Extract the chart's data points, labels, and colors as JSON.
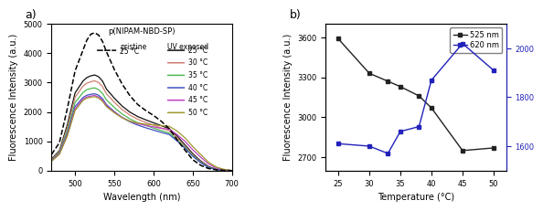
{
  "panel_a": {
    "title": "p(NIPAM-NBD-SP)",
    "xlabel": "Wavelength (nm)",
    "ylabel": "Fluorescence Intensity (a.u.)",
    "xlim": [
      470,
      700
    ],
    "ylim": [
      0,
      5000
    ],
    "yticks": [
      0,
      1000,
      2000,
      3000,
      4000,
      5000
    ],
    "xticks": [
      500,
      550,
      600,
      650,
      700
    ],
    "pristine_color": "#000000",
    "pristine_label": "25 °C",
    "uv_colors": [
      "#111111",
      "#d08070",
      "#50b850",
      "#4050c0",
      "#c040c0",
      "#a09830"
    ],
    "uv_labels": [
      "25 °C",
      "30 °C",
      "35 °C",
      "40 °C",
      "45 °C",
      "50 °C"
    ],
    "wavelengths": [
      470,
      480,
      490,
      500,
      510,
      515,
      520,
      525,
      530,
      535,
      540,
      550,
      560,
      570,
      580,
      590,
      600,
      610,
      620,
      630,
      640,
      650,
      660,
      670,
      680,
      690,
      700
    ],
    "pristine_25": [
      550,
      950,
      2100,
      3400,
      4100,
      4450,
      4650,
      4700,
      4620,
      4400,
      4050,
      3450,
      2950,
      2550,
      2250,
      2050,
      1880,
      1680,
      1430,
      1050,
      700,
      370,
      180,
      70,
      25,
      8,
      0
    ],
    "uv_25": [
      400,
      680,
      1550,
      2650,
      3050,
      3170,
      3230,
      3260,
      3200,
      3050,
      2780,
      2470,
      2200,
      1990,
      1840,
      1730,
      1630,
      1530,
      1430,
      1180,
      880,
      580,
      330,
      140,
      45,
      12,
      0
    ],
    "uv_30": [
      380,
      650,
      1450,
      2500,
      2880,
      2980,
      3030,
      3060,
      3000,
      2860,
      2620,
      2330,
      2080,
      1890,
      1750,
      1640,
      1550,
      1450,
      1360,
      1120,
      830,
      540,
      300,
      120,
      38,
      10,
      0
    ],
    "uv_35": [
      360,
      620,
      1350,
      2320,
      2660,
      2760,
      2800,
      2820,
      2760,
      2630,
      2410,
      2150,
      1930,
      1760,
      1630,
      1540,
      1450,
      1360,
      1280,
      1060,
      790,
      510,
      280,
      110,
      35,
      9,
      0
    ],
    "uv_40": [
      340,
      590,
      1260,
      2180,
      2490,
      2570,
      2600,
      2620,
      2570,
      2450,
      2250,
      2010,
      1810,
      1660,
      1550,
      1460,
      1380,
      1300,
      1230,
      1010,
      760,
      490,
      270,
      105,
      33,
      8,
      0
    ],
    "uv_45": [
      330,
      570,
      1200,
      2100,
      2430,
      2510,
      2540,
      2560,
      2510,
      2400,
      2210,
      1990,
      1810,
      1680,
      1600,
      1540,
      1490,
      1440,
      1410,
      1230,
      1000,
      710,
      460,
      230,
      90,
      28,
      0
    ],
    "uv_50": [
      320,
      550,
      1170,
      2050,
      2390,
      2470,
      2500,
      2520,
      2470,
      2360,
      2180,
      1970,
      1800,
      1680,
      1620,
      1580,
      1560,
      1530,
      1510,
      1350,
      1120,
      820,
      550,
      290,
      120,
      40,
      0
    ]
  },
  "panel_b": {
    "xlabel": "Temperature (°C)",
    "ylabel_left": "Fluorescence Intensity (a.u.)",
    "temperatures": [
      25,
      30,
      33,
      35,
      38,
      40,
      45,
      50
    ],
    "nm525": [
      3590,
      3330,
      3270,
      3230,
      3160,
      3070,
      2750,
      2770
    ],
    "nm620": [
      1610,
      1600,
      1570,
      1660,
      1680,
      1870,
      2020,
      1910
    ],
    "left_ylim": [
      2600,
      3700
    ],
    "right_ylim": [
      1500,
      2100
    ],
    "left_yticks": [
      2700,
      3000,
      3300,
      3600
    ],
    "right_yticks": [
      1600,
      1800,
      2000
    ],
    "xticks": [
      25,
      30,
      35,
      40,
      45,
      50
    ],
    "xlim": [
      23,
      52
    ],
    "color_525": "#222222",
    "color_620": "#2222bb",
    "label_525": "525 nm",
    "label_620": "620 nm"
  }
}
